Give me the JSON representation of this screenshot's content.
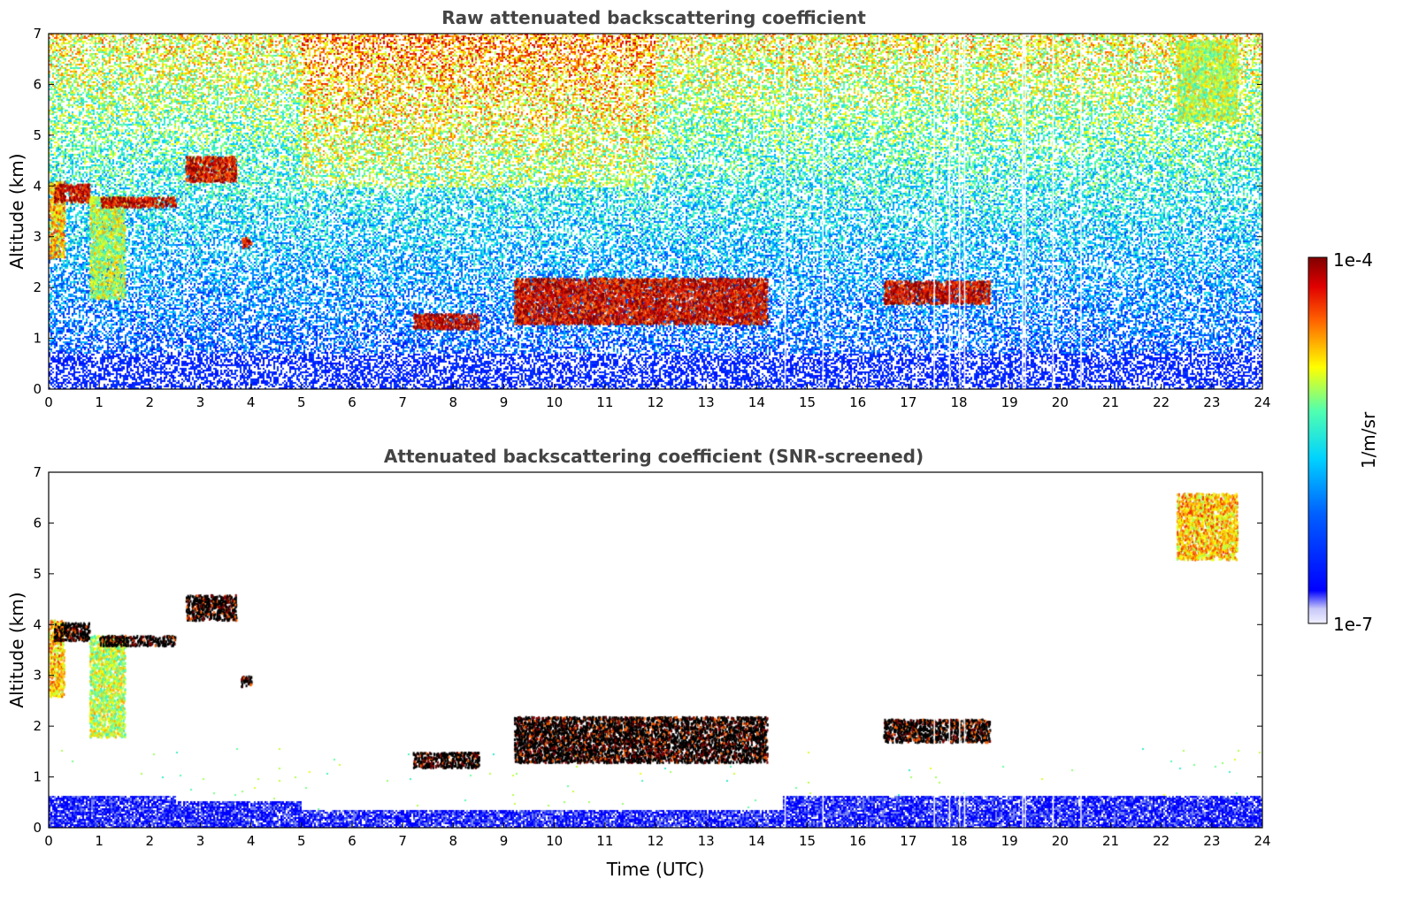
{
  "chart_data": [
    {
      "type": "heatmap",
      "title": "Raw attenuated backscattering coefficient",
      "xlabel": "",
      "ylabel": "Altitude (km)",
      "xlim": [
        0,
        24
      ],
      "ylim": [
        0,
        7
      ],
      "xticks": [
        0,
        1,
        2,
        3,
        4,
        5,
        6,
        7,
        8,
        9,
        10,
        11,
        12,
        13,
        14,
        15,
        16,
        17,
        18,
        19,
        20,
        21,
        22,
        23,
        24
      ],
      "yticks": [
        0,
        1,
        2,
        3,
        4,
        5,
        6,
        7
      ],
      "background": "noisy",
      "features": [
        {
          "label": "cloud",
          "x": [
            0.0,
            0.3
          ],
          "y": [
            2.6,
            4.1
          ],
          "level": "medium-high"
        },
        {
          "label": "cloud",
          "x": [
            0.1,
            0.8
          ],
          "y": [
            3.7,
            4.05
          ],
          "level": "high"
        },
        {
          "label": "cloud",
          "x": [
            0.8,
            1.5
          ],
          "y": [
            1.8,
            3.8
          ],
          "level": "medium"
        },
        {
          "label": "cloud",
          "x": [
            1.0,
            2.5
          ],
          "y": [
            3.6,
            3.8
          ],
          "level": "high"
        },
        {
          "label": "cloud",
          "x": [
            2.7,
            3.7
          ],
          "y": [
            4.1,
            4.6
          ],
          "level": "high"
        },
        {
          "label": "cloud",
          "x": [
            3.8,
            4.0
          ],
          "y": [
            2.8,
            3.0
          ],
          "level": "high"
        },
        {
          "label": "cloud",
          "x": [
            7.2,
            8.5
          ],
          "y": [
            1.2,
            1.5
          ],
          "level": "high"
        },
        {
          "label": "cloud",
          "x": [
            9.2,
            14.2
          ],
          "y": [
            1.3,
            2.2
          ],
          "level": "high"
        },
        {
          "label": "cloud",
          "x": [
            16.5,
            18.6
          ],
          "y": [
            1.7,
            2.15
          ],
          "level": "high"
        },
        {
          "label": "cloud",
          "x": [
            22.3,
            23.5
          ],
          "y": [
            5.3,
            6.9
          ],
          "level": "medium"
        }
      ]
    },
    {
      "type": "heatmap",
      "title": "Attenuated backscattering coefficient (SNR-screened)",
      "xlabel": "Time (UTC)",
      "ylabel": "Altitude (km)",
      "xlim": [
        0,
        24
      ],
      "ylim": [
        0,
        7
      ],
      "xticks": [
        0,
        1,
        2,
        3,
        4,
        5,
        6,
        7,
        8,
        9,
        10,
        11,
        12,
        13,
        14,
        15,
        16,
        17,
        18,
        19,
        20,
        21,
        22,
        23,
        24
      ],
      "yticks": [
        0,
        1,
        2,
        3,
        4,
        5,
        6,
        7
      ],
      "background": "screened",
      "features": [
        {
          "label": "cloud",
          "x": [
            0.0,
            0.3
          ],
          "y": [
            2.6,
            4.1
          ],
          "level": "medium-high"
        },
        {
          "label": "cloud",
          "x": [
            0.1,
            0.8
          ],
          "y": [
            3.7,
            4.05
          ],
          "level": "saturated"
        },
        {
          "label": "cloud",
          "x": [
            0.8,
            1.5
          ],
          "y": [
            1.8,
            3.8
          ],
          "level": "medium"
        },
        {
          "label": "cloud",
          "x": [
            1.0,
            2.5
          ],
          "y": [
            3.6,
            3.8
          ],
          "level": "saturated"
        },
        {
          "label": "cloud",
          "x": [
            2.7,
            3.7
          ],
          "y": [
            4.1,
            4.6
          ],
          "level": "saturated"
        },
        {
          "label": "cloud",
          "x": [
            3.8,
            4.0
          ],
          "y": [
            2.8,
            3.0
          ],
          "level": "saturated"
        },
        {
          "label": "cloud",
          "x": [
            7.2,
            8.5
          ],
          "y": [
            1.2,
            1.5
          ],
          "level": "saturated"
        },
        {
          "label": "cloud",
          "x": [
            9.2,
            14.2
          ],
          "y": [
            1.3,
            2.2
          ],
          "level": "saturated"
        },
        {
          "label": "cloud",
          "x": [
            16.5,
            18.6
          ],
          "y": [
            1.7,
            2.15
          ],
          "level": "saturated"
        },
        {
          "label": "cloud",
          "x": [
            22.3,
            23.5
          ],
          "y": [
            5.3,
            6.6
          ],
          "level": "medium-high"
        }
      ]
    }
  ],
  "colorbar": {
    "label": "1/m/sr",
    "max_label": "1e-4",
    "min_label": "1e-7",
    "scale": "log",
    "range": [
      1e-07,
      0.0001
    ],
    "colors": [
      "#e8e8f8",
      "#0000ff",
      "#00c8ff",
      "#ffff00",
      "#ff5000",
      "#800000"
    ]
  }
}
